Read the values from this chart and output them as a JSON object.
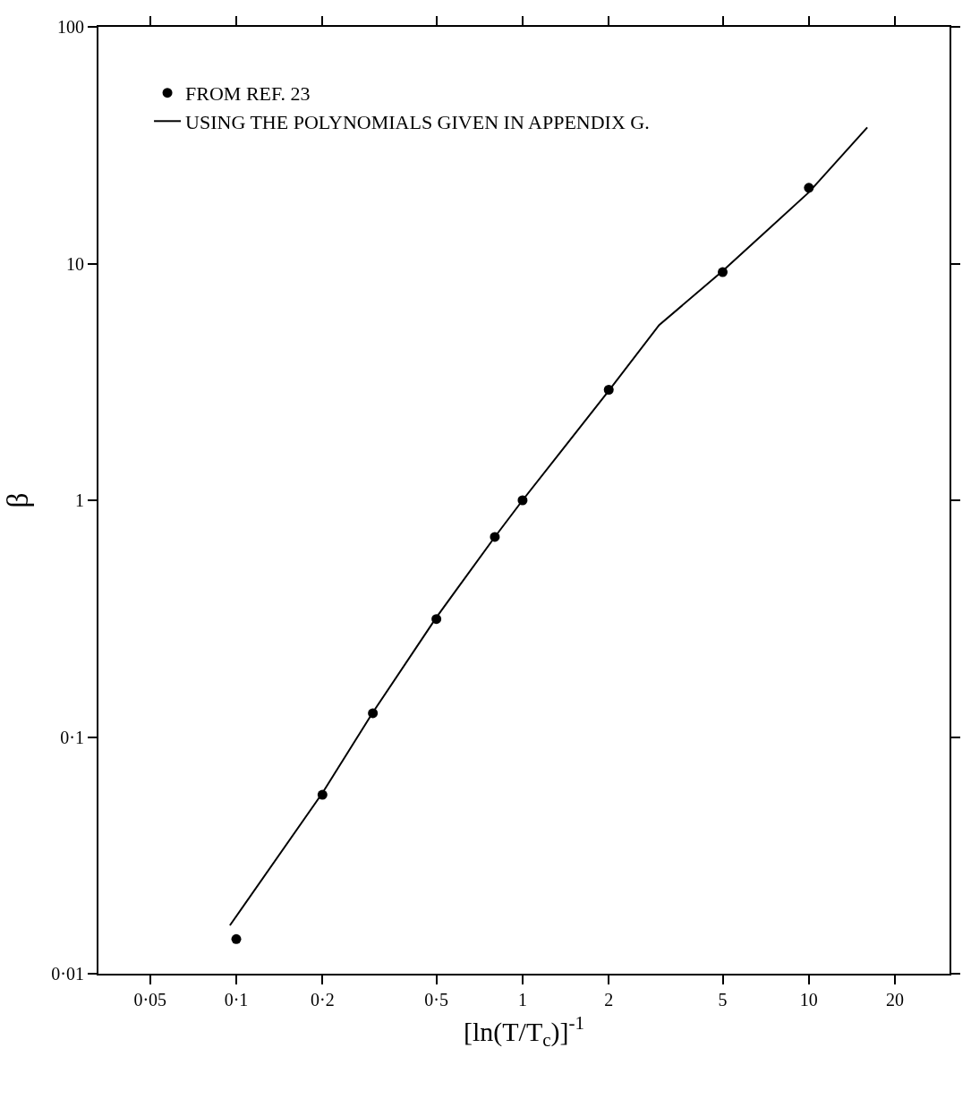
{
  "chart_data": {
    "type": "scatter",
    "xlabel": "[ln(T/T$_{c}$)]$^{-1}$",
    "ylabel": "β",
    "log": "xy",
    "xlim": [
      0.033,
      31
    ],
    "ylim": [
      0.01,
      100
    ],
    "xticks": [
      {
        "value": 0.05,
        "label": "0·05"
      },
      {
        "value": 0.1,
        "label": "0·1"
      },
      {
        "value": 0.2,
        "label": "0·2"
      },
      {
        "value": 0.5,
        "label": "0·5"
      },
      1,
      2,
      5,
      10,
      20
    ],
    "yticks": [
      {
        "value": 0.01,
        "label": "0·01"
      },
      {
        "value": 0.1,
        "label": "0·1"
      },
      1,
      10,
      100
    ],
    "grid": false,
    "legend": "top left",
    "series": [
      {
        "name": "FROM REF. 23",
        "marker": "circle",
        "color": "#000000",
        "x": [
          0.1,
          0.2,
          0.3,
          0.5,
          0.8,
          1,
          2,
          5,
          10
        ],
        "values": [
          0.014,
          0.057,
          0.126,
          0.315,
          0.7,
          1.0,
          2.93,
          9.2,
          20.9
        ]
      },
      {
        "name": "USING THE POLYNOMIALS GIVEN IN APPENDIX G.",
        "type": "line",
        "line_style": "solid",
        "color": "#000000",
        "x": [
          0.095,
          0.2,
          0.3,
          0.5,
          0.8,
          1,
          2,
          3,
          5,
          10,
          16
        ],
        "values": [
          0.016,
          0.058,
          0.127,
          0.32,
          0.7,
          1.0,
          2.9,
          5.5,
          9.3,
          20,
          37.6
        ]
      }
    ]
  }
}
